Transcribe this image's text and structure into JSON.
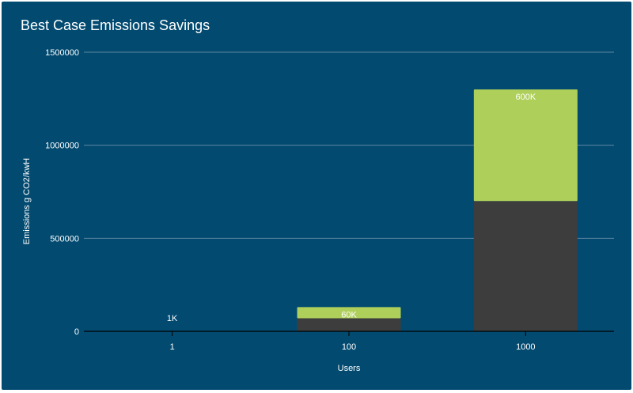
{
  "chart_data": {
    "type": "bar",
    "stacked": true,
    "title": "Best Case Emissions Savings",
    "xlabel": "Users",
    "ylabel": "Emissions g CO2/kwH",
    "categories": [
      "1",
      "100",
      "1000"
    ],
    "ylim": [
      0,
      1500000
    ],
    "yticks": [
      "0",
      "500000",
      "1000000",
      "1500000"
    ],
    "grid": true,
    "legend": "none",
    "series": [
      {
        "values": [
          700,
          70000,
          700000
        ],
        "color": "#3d3d3d"
      },
      {
        "values": [
          600,
          60000,
          600000
        ],
        "color": "#aecf5a"
      }
    ],
    "data_labels": [
      "1K",
      "60K",
      "600K"
    ],
    "colors": {
      "background": "#024a70",
      "grid": "#5d86a0",
      "axis": "#000000",
      "text": "#ffffff"
    }
  }
}
